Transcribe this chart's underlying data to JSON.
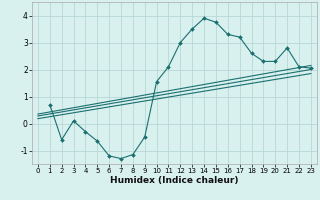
{
  "title": "",
  "xlabel": "Humidex (Indice chaleur)",
  "bg_color": "#d8f0ee",
  "grid_color": "#b8d8d6",
  "line_color": "#1a7070",
  "xlim": [
    -0.5,
    23.5
  ],
  "ylim": [
    -1.5,
    4.5
  ],
  "xticks": [
    0,
    1,
    2,
    3,
    4,
    5,
    6,
    7,
    8,
    9,
    10,
    11,
    12,
    13,
    14,
    15,
    16,
    17,
    18,
    19,
    20,
    21,
    22,
    23
  ],
  "yticks": [
    -1,
    0,
    1,
    2,
    3,
    4
  ],
  "main_x": [
    1,
    2,
    3,
    4,
    5,
    6,
    7,
    8,
    9,
    10,
    11,
    12,
    13,
    14,
    15,
    16,
    17,
    18,
    19,
    20,
    21,
    22,
    23
  ],
  "main_y": [
    0.7,
    -0.6,
    0.1,
    -0.3,
    -0.65,
    -1.2,
    -1.3,
    -1.15,
    -0.5,
    1.55,
    2.1,
    3.0,
    3.5,
    3.9,
    3.75,
    3.3,
    3.2,
    2.6,
    2.3,
    2.3,
    2.8,
    2.1,
    2.05
  ],
  "line1_x": [
    0,
    23
  ],
  "line1_y": [
    0.28,
    2.0
  ],
  "line2_x": [
    0,
    23
  ],
  "line2_y": [
    0.18,
    1.85
  ],
  "line3_x": [
    0,
    23
  ],
  "line3_y": [
    0.35,
    2.15
  ]
}
